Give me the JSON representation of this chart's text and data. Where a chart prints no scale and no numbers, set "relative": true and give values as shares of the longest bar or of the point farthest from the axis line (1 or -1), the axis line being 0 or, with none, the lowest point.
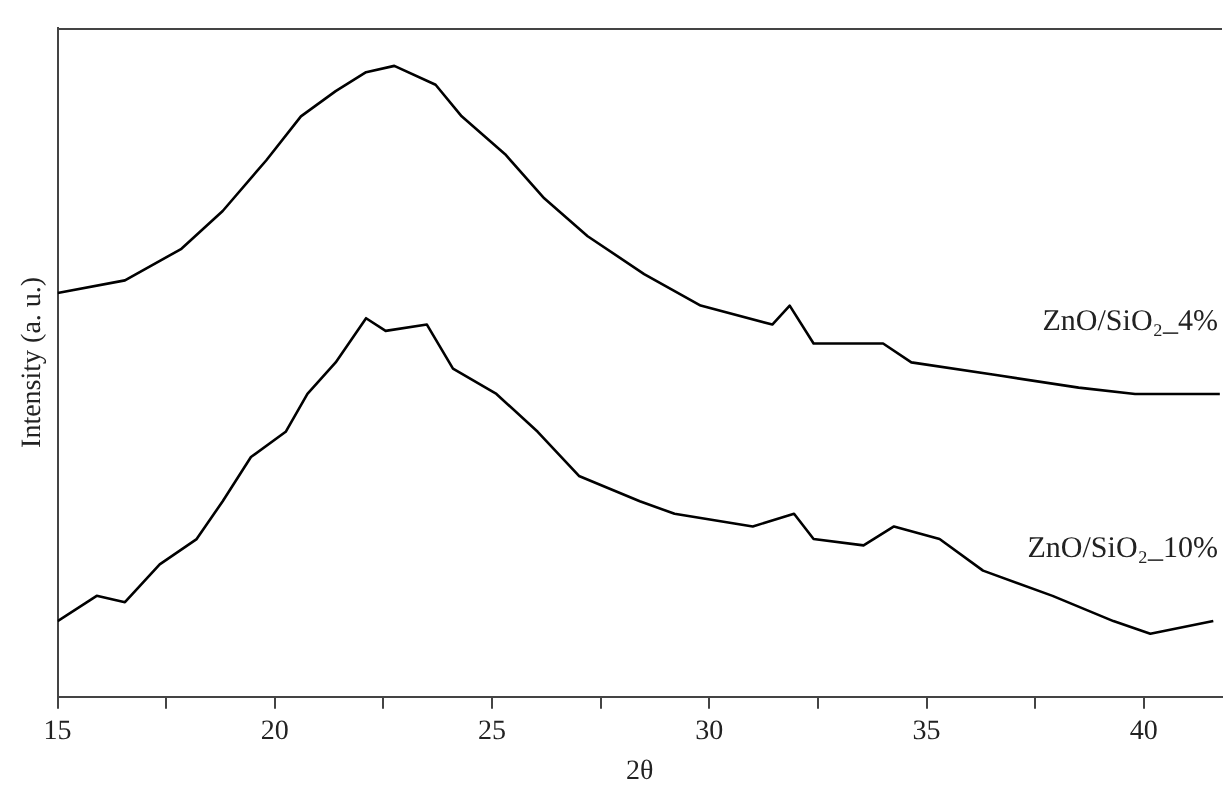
{
  "chart_data": {
    "type": "line",
    "relative": true,
    "xlabel": "2θ",
    "ylabel": "Intensity (a. u.)",
    "xlim": [
      15,
      41.8
    ],
    "xticks": [
      15,
      {
        "value": 17.5,
        "label": null
      },
      20,
      {
        "value": 22.5,
        "label": null
      },
      25,
      {
        "value": 27.5,
        "label": null
      },
      30,
      {
        "value": 32.5,
        "label": null
      },
      35,
      {
        "value": 37.5,
        "label": null
      },
      40
    ],
    "grid": false,
    "legend": false,
    "marker": "none",
    "line_style": "solid",
    "series": [
      {
        "name": "ZnO/SiO₂_4%",
        "color": "#000000",
        "x": [
          15.0,
          16.55,
          17.85,
          18.8,
          19.8,
          20.6,
          21.4,
          22.1,
          22.75,
          23.7,
          24.3,
          25.3,
          26.2,
          27.2,
          28.5,
          29.8,
          31.45,
          31.85,
          32.4,
          34.0,
          34.65,
          36.6,
          38.5,
          39.8,
          41.75
        ],
        "values": [
          0.64,
          0.66,
          0.71,
          0.77,
          0.85,
          0.92,
          0.96,
          0.99,
          1,
          0.97,
          0.92,
          0.86,
          0.79,
          0.73,
          0.67,
          0.62,
          0.59,
          0.62,
          0.56,
          0.56,
          0.53,
          0.51,
          0.49,
          0.48,
          0.48
        ]
      },
      {
        "name": "ZnO/SiO₂_10%",
        "color": "#000000",
        "x": [
          15.0,
          15.9,
          16.55,
          17.35,
          18.2,
          18.8,
          19.45,
          20.25,
          20.75,
          21.4,
          22.1,
          22.55,
          23.5,
          24.1,
          25.1,
          26.05,
          27.0,
          28.4,
          29.2,
          31.0,
          31.95,
          32.4,
          33.55,
          34.25,
          35.3,
          36.3,
          37.9,
          39.3,
          40.15,
          41.6
        ],
        "values": [
          0.12,
          0.16,
          0.15,
          0.21,
          0.25,
          0.31,
          0.38,
          0.42,
          0.48,
          0.53,
          0.6,
          0.58,
          0.59,
          0.52,
          0.48,
          0.42,
          0.35,
          0.31,
          0.29,
          0.27,
          0.29,
          0.25,
          0.24,
          0.27,
          0.25,
          0.2,
          0.16,
          0.12,
          0.1,
          0.12
        ]
      }
    ]
  }
}
